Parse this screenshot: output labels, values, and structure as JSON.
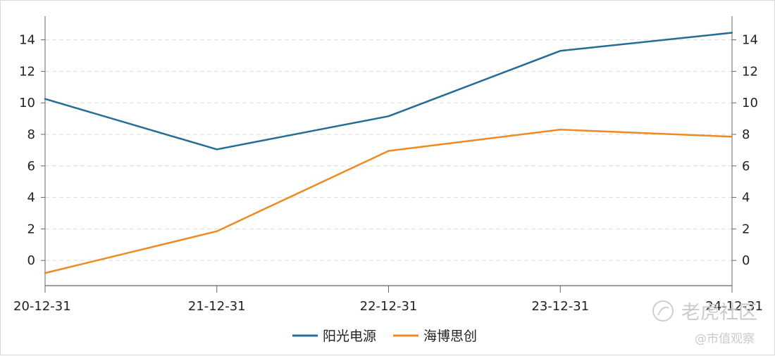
{
  "chart_data": {
    "type": "line",
    "categories": [
      "20-12-31",
      "21-12-31",
      "22-12-31",
      "23-12-31",
      "24-12-31"
    ],
    "series": [
      {
        "name": "阳光电源",
        "color": "#236d96",
        "values": [
          10.25,
          7.05,
          9.15,
          13.3,
          14.45
        ]
      },
      {
        "name": "海博思创",
        "color": "#ef8a20",
        "values": [
          -0.8,
          1.85,
          6.95,
          8.3,
          7.85
        ]
      }
    ],
    "ylim": [
      -1.6,
      15.5
    ],
    "yticks": [
      0,
      2,
      4,
      6,
      8,
      10,
      12,
      14
    ],
    "grid": true,
    "legend": "bottom-center",
    "title": "",
    "xlabel": "",
    "ylabel": ""
  },
  "watermark": {
    "logo_text": "老虎社区",
    "sub_text": "@市值观察",
    "logo_icon": "tiger-logo-icon"
  }
}
